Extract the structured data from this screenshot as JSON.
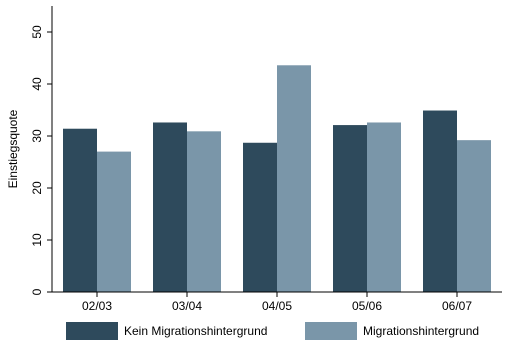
{
  "chart_data": {
    "type": "bar",
    "categories": [
      "02/03",
      "03/04",
      "04/05",
      "05/06",
      "06/07"
    ],
    "series": [
      {
        "name": "Kein Migrationshintergrund",
        "color": "#2e4a5c",
        "values": [
          31.4,
          32.6,
          28.7,
          32.1,
          34.9
        ]
      },
      {
        "name": "Migrationshintergrund",
        "color": "#7a96a9",
        "values": [
          27.0,
          30.9,
          43.6,
          32.6,
          29.2
        ]
      }
    ],
    "title": "",
    "xlabel": "",
    "ylabel": "Einstiegsquote",
    "ylim": [
      0,
      55
    ],
    "yticks": [
      0,
      10,
      20,
      30,
      40,
      50
    ],
    "grid": false,
    "legend_position": "bottom"
  }
}
